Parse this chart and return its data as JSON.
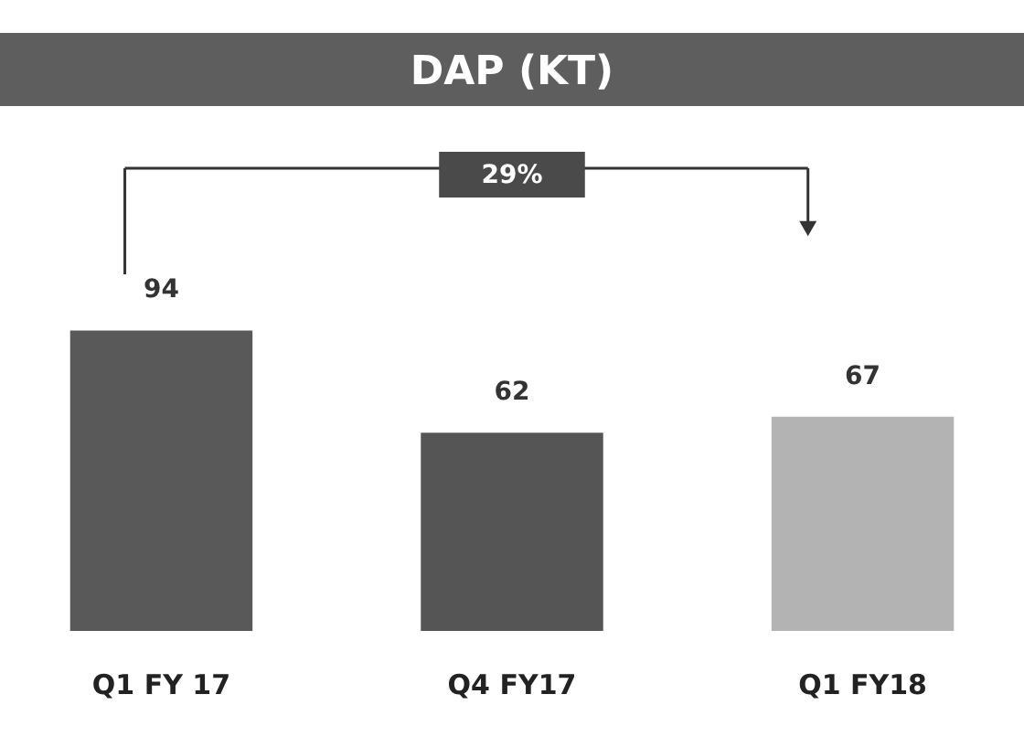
{
  "chart_data": {
    "type": "bar",
    "title": "DAP (KT)",
    "categories": [
      "Q1 FY 17",
      "Q4 FY17",
      "Q1 FY18"
    ],
    "values": [
      94,
      62,
      67
    ],
    "colors": [
      "#595959",
      "#555555",
      "#b3b3b3"
    ],
    "data_labels": true,
    "annotations": [
      "29%"
    ]
  }
}
